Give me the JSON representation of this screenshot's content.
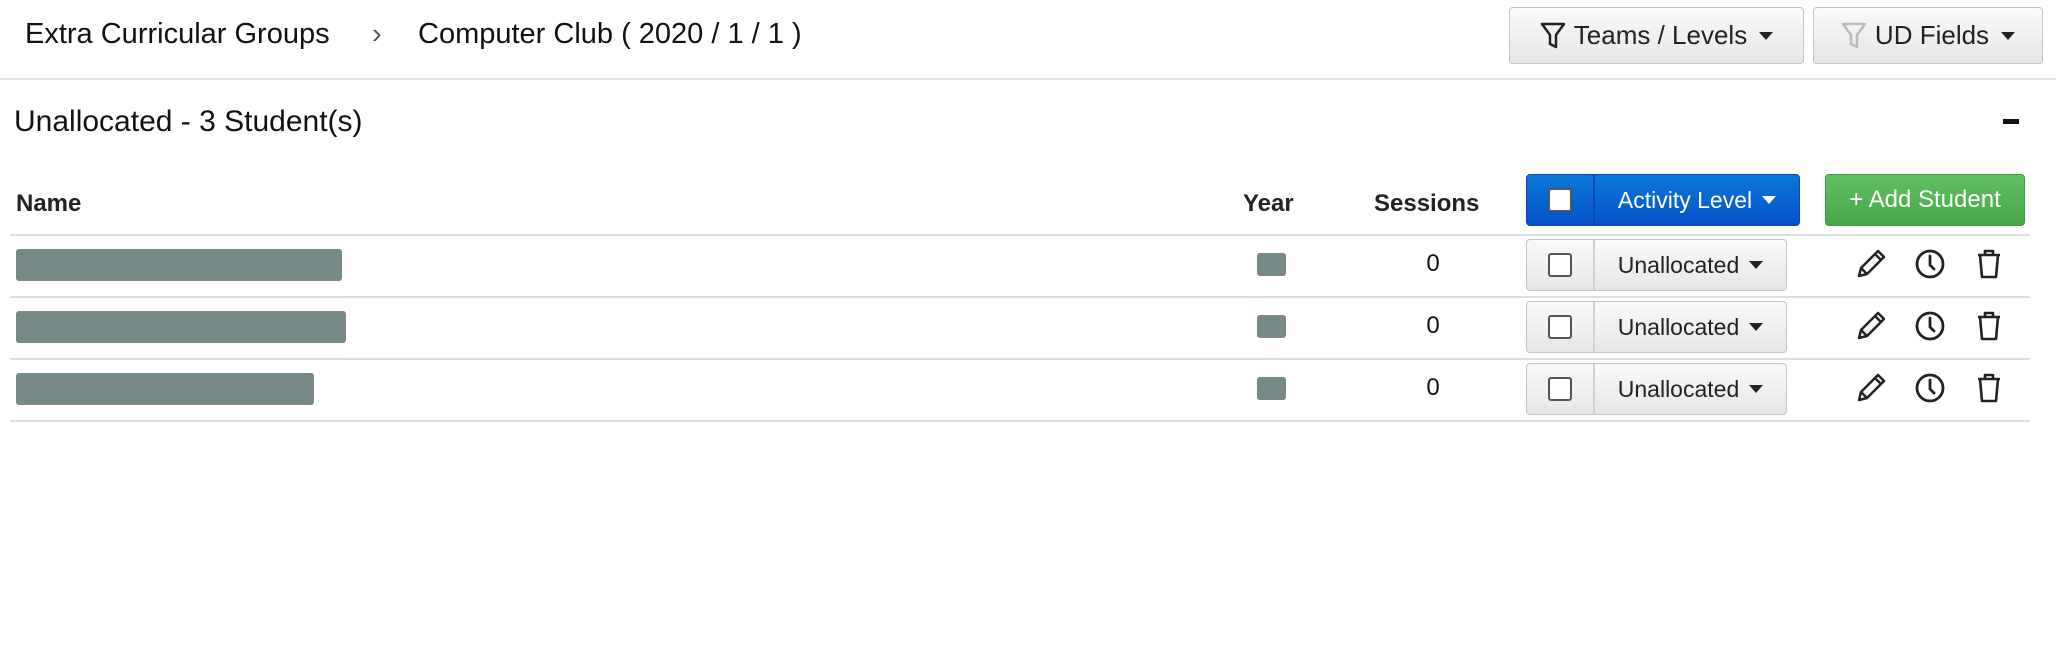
{
  "breadcrumb": {
    "parent": "Extra Curricular Groups",
    "separator": "›",
    "current": "Computer Club ( 2020 / 1 / 1 )"
  },
  "toolbar": {
    "teams_levels": "Teams / Levels",
    "ud_fields": "UD Fields"
  },
  "section": {
    "title": "Unallocated - 3 Student(s)",
    "collapse": "−"
  },
  "table": {
    "headers": {
      "name": "Name",
      "year": "Year",
      "sessions": "Sessions"
    },
    "activity_level": "Activity Level",
    "add_student": "+ Add Student",
    "rows": [
      {
        "sessions": "0",
        "level": "Unallocated"
      },
      {
        "sessions": "0",
        "level": "Unallocated"
      },
      {
        "sessions": "0",
        "level": "Unallocated"
      }
    ]
  },
  "colors": {
    "primary": "#0a62d0",
    "success": "#4cae4c",
    "redaction": "#778a87"
  }
}
